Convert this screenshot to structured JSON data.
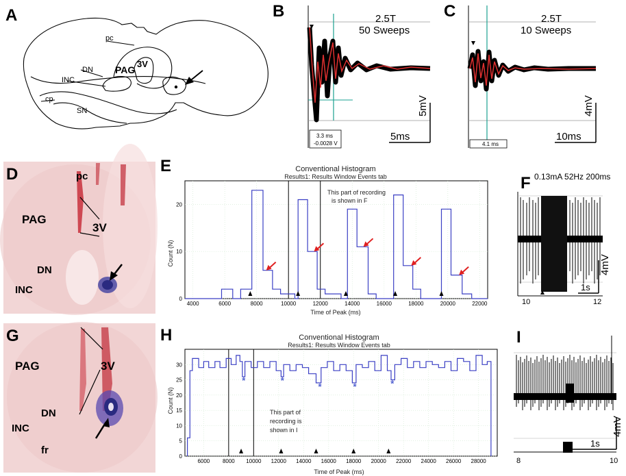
{
  "panel_letters": {
    "A": "A",
    "B": "B",
    "C": "C",
    "D": "D",
    "E": "E",
    "F": "F",
    "G": "G",
    "H": "H",
    "I": "I"
  },
  "panelA": {
    "pc": "pc",
    "pag": "PAG",
    "v3": "3V",
    "dn": "DN",
    "inc": "INC",
    "cp": "cp",
    "sn": "SN"
  },
  "panelB": {
    "stim": "2.5T",
    "sweeps": "50 Sweeps",
    "latency": "3.3 ms",
    "voltage": "-0.0028 V",
    "vscale": "5mV",
    "tscale": "5ms"
  },
  "panelC": {
    "stim": "2.5T",
    "sweeps": "10 Sweeps",
    "latency": "4.1 ms",
    "vscale": "4mV",
    "tscale": "10ms"
  },
  "panelD": {
    "pc": "pc",
    "pag": "PAG",
    "v3": "3V",
    "dn": "DN",
    "inc": "INC"
  },
  "panelG": {
    "pag": "PAG",
    "v3": "3V",
    "dn": "DN",
    "inc": "INC",
    "fr": "fr"
  },
  "panelF": {
    "params": "0.13mA  52Hz  200ms",
    "vscale": "4mV",
    "tscale": "1s",
    "x_start": "10",
    "x_end": "12"
  },
  "panelI": {
    "vscale": "4mV",
    "tscale": "1s",
    "x_start": "8",
    "x_end": "10"
  },
  "panelE": {
    "title": "Conventional Histogram",
    "subtitle": "Results1: Results Window Events tab",
    "annotation_line1": "This part of recording",
    "annotation_line2": "is shown in F",
    "ylabel": "Count (N)",
    "xlabel": "Time of Peak (ms)",
    "xticks": [
      "4000",
      "6000",
      "8000",
      "10000",
      "12000",
      "14000",
      "16000",
      "18000",
      "20000",
      "22000"
    ],
    "yticks": [
      "0",
      "10",
      "20"
    ]
  },
  "panelH": {
    "title": "Conventional Histogram",
    "subtitle": "Results1: Results Window Events tab",
    "annotation_line1": "This part of",
    "annotation_line2": "recording is",
    "annotation_line3": "shown in I",
    "ylabel": "Count (N)",
    "xlabel": "Time of Peak (ms)",
    "xticks": [
      "6000",
      "8000",
      "10000",
      "12000",
      "14000",
      "16000",
      "18000",
      "20000",
      "22000",
      "24000",
      "26000",
      "28000"
    ],
    "yticks": [
      "0",
      "5",
      "10",
      "15",
      "20",
      "25",
      "30"
    ]
  },
  "colors": {
    "hist_line": "#3a3fc4",
    "arrow_red": "#e02020",
    "asterisk": "#5060d0",
    "trace_red": "#e03030",
    "cursor": "#1aa090",
    "tissue_bg": "#f2d6d6"
  },
  "chart_data": [
    {
      "type": "line",
      "title": "Conventional Histogram",
      "subtitle": "Results1: Results Window Events tab",
      "xlabel": "Time of Peak (ms)",
      "ylabel": "Count (N)",
      "xlim": [
        3500,
        22500
      ],
      "ylim": [
        0,
        25
      ],
      "steps": [
        [
          3500,
          0
        ],
        [
          5800,
          0
        ],
        [
          5800,
          2
        ],
        [
          6500,
          2
        ],
        [
          6500,
          0
        ],
        [
          7000,
          0
        ],
        [
          7000,
          2
        ],
        [
          7700,
          2
        ],
        [
          7700,
          23
        ],
        [
          8400,
          23
        ],
        [
          8400,
          6
        ],
        [
          9000,
          6
        ],
        [
          9000,
          2
        ],
        [
          9500,
          2
        ],
        [
          9500,
          1
        ],
        [
          10400,
          1
        ],
        [
          10400,
          0
        ],
        [
          10600,
          0
        ],
        [
          10600,
          21
        ],
        [
          11200,
          21
        ],
        [
          11200,
          10
        ],
        [
          11800,
          10
        ],
        [
          11800,
          2
        ],
        [
          12300,
          2
        ],
        [
          12300,
          1
        ],
        [
          13300,
          1
        ],
        [
          13300,
          0
        ],
        [
          13700,
          0
        ],
        [
          13700,
          19
        ],
        [
          14300,
          19
        ],
        [
          14300,
          11
        ],
        [
          15000,
          11
        ],
        [
          15000,
          1
        ],
        [
          15500,
          1
        ],
        [
          15500,
          0
        ],
        [
          16600,
          0
        ],
        [
          16600,
          22
        ],
        [
          17200,
          22
        ],
        [
          17200,
          7
        ],
        [
          17800,
          7
        ],
        [
          17800,
          2
        ],
        [
          18300,
          2
        ],
        [
          18300,
          0
        ],
        [
          19600,
          0
        ],
        [
          19600,
          19
        ],
        [
          20200,
          19
        ],
        [
          20200,
          5
        ],
        [
          20900,
          5
        ],
        [
          20900,
          1
        ],
        [
          21500,
          1
        ],
        [
          21500,
          0
        ],
        [
          22500,
          0
        ]
      ],
      "markers_black_triangle": [
        7600,
        10600,
        13600,
        16700,
        19600
      ],
      "markers_red_arrow": [
        [
          8600,
          6
        ],
        [
          11600,
          10
        ],
        [
          14700,
          11
        ],
        [
          17700,
          7
        ],
        [
          20700,
          5
        ]
      ],
      "annotation_lines": [
        10000,
        12000
      ]
    },
    {
      "type": "line",
      "title": "Conventional Histogram",
      "subtitle": "Results1: Results Window Events tab",
      "xlabel": "Time of Peak (ms)",
      "ylabel": "Count (N)",
      "xlim": [
        4500,
        29500
      ],
      "ylim": [
        0,
        35
      ],
      "steps": [
        [
          4700,
          0
        ],
        [
          4700,
          6
        ],
        [
          4900,
          6
        ],
        [
          4900,
          28
        ],
        [
          5100,
          28
        ],
        [
          5100,
          32
        ],
        [
          5600,
          32
        ],
        [
          5600,
          29
        ],
        [
          6000,
          29
        ],
        [
          6000,
          31
        ],
        [
          6400,
          31
        ],
        [
          6400,
          29
        ],
        [
          6900,
          29
        ],
        [
          6900,
          31
        ],
        [
          7300,
          31
        ],
        [
          7300,
          29
        ],
        [
          7800,
          29
        ],
        [
          7800,
          32
        ],
        [
          8200,
          32
        ],
        [
          8200,
          30
        ],
        [
          8600,
          30
        ],
        [
          8600,
          33
        ],
        [
          8900,
          33
        ],
        [
          8900,
          31
        ],
        [
          9100,
          31
        ],
        [
          9100,
          26
        ],
        [
          9300,
          26
        ],
        [
          9300,
          31
        ],
        [
          9800,
          31
        ],
        [
          9800,
          29
        ],
        [
          10300,
          29
        ],
        [
          10300,
          31
        ],
        [
          10800,
          31
        ],
        [
          10800,
          29
        ],
        [
          11300,
          29
        ],
        [
          11300,
          31
        ],
        [
          11800,
          31
        ],
        [
          11800,
          28
        ],
        [
          12200,
          28
        ],
        [
          12200,
          26
        ],
        [
          12400,
          26
        ],
        [
          12400,
          30
        ],
        [
          12900,
          30
        ],
        [
          12900,
          28
        ],
        [
          13400,
          28
        ],
        [
          13400,
          30
        ],
        [
          13900,
          30
        ],
        [
          13900,
          29
        ],
        [
          14400,
          29
        ],
        [
          14400,
          27
        ],
        [
          15000,
          27
        ],
        [
          15000,
          24
        ],
        [
          15400,
          24
        ],
        [
          15400,
          29
        ],
        [
          15900,
          29
        ],
        [
          15900,
          31
        ],
        [
          16400,
          31
        ],
        [
          16400,
          28
        ],
        [
          16900,
          28
        ],
        [
          16900,
          30
        ],
        [
          17400,
          30
        ],
        [
          17400,
          28
        ],
        [
          17900,
          28
        ],
        [
          17900,
          24
        ],
        [
          18200,
          24
        ],
        [
          18200,
          30
        ],
        [
          18700,
          30
        ],
        [
          18700,
          29
        ],
        [
          19200,
          29
        ],
        [
          19200,
          31
        ],
        [
          19700,
          31
        ],
        [
          19700,
          28
        ],
        [
          20200,
          28
        ],
        [
          20200,
          33
        ],
        [
          20700,
          33
        ],
        [
          20700,
          28
        ],
        [
          21000,
          28
        ],
        [
          21000,
          25
        ],
        [
          21300,
          25
        ],
        [
          21300,
          30
        ],
        [
          21800,
          30
        ],
        [
          21800,
          32
        ],
        [
          22300,
          32
        ],
        [
          22300,
          29
        ],
        [
          22800,
          29
        ],
        [
          22800,
          31
        ],
        [
          23300,
          31
        ],
        [
          23300,
          29
        ],
        [
          23800,
          29
        ],
        [
          23800,
          31
        ],
        [
          24300,
          31
        ],
        [
          24300,
          30
        ],
        [
          24800,
          30
        ],
        [
          24800,
          29
        ],
        [
          25300,
          29
        ],
        [
          25300,
          31
        ],
        [
          25800,
          31
        ],
        [
          25800,
          28
        ],
        [
          26300,
          28
        ],
        [
          26300,
          32
        ],
        [
          26800,
          32
        ],
        [
          26800,
          31
        ],
        [
          27300,
          31
        ],
        [
          27300,
          28
        ],
        [
          27800,
          28
        ],
        [
          27800,
          33
        ],
        [
          28300,
          33
        ],
        [
          28300,
          30
        ],
        [
          28700,
          30
        ],
        [
          28700,
          31
        ],
        [
          29000,
          31
        ],
        [
          29000,
          0
        ]
      ],
      "markers_black_triangle": [
        9000,
        12200,
        15000,
        18000,
        20800
      ],
      "markers_asterisk": [
        [
          9200,
          26
        ],
        [
          12300,
          26
        ],
        [
          15300,
          24
        ],
        [
          18100,
          24
        ],
        [
          21100,
          25
        ]
      ],
      "annotation_lines": [
        8000,
        10000
      ]
    }
  ]
}
